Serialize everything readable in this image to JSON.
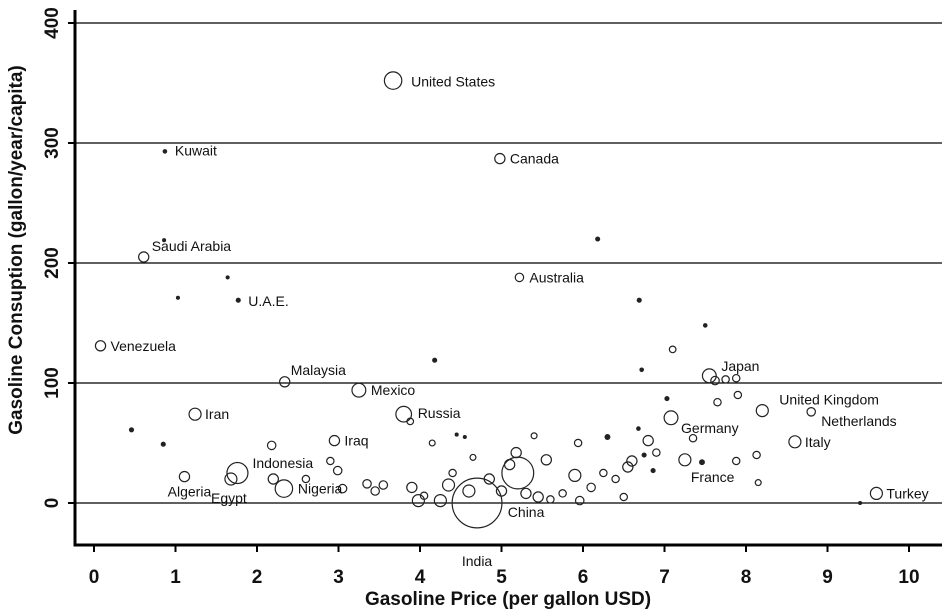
{
  "chart_data": {
    "type": "scatter",
    "title": "",
    "xlabel": "Gasoline Price (per gallon USD)",
    "ylabel": "Gasoline Consuption (gallon/year/capita)",
    "xlim": [
      -0.2,
      10.4
    ],
    "ylim": [
      -35,
      415
    ],
    "xticks": [
      0,
      1,
      2,
      3,
      4,
      5,
      6,
      7,
      8,
      9,
      10
    ],
    "yticks": [
      0,
      100,
      200,
      300,
      400
    ],
    "grid": "horizontal lines at y ticks",
    "colors": {
      "marker": "#222222",
      "text": "#111111",
      "grid": "#000000"
    },
    "points": [
      {
        "label": "United States",
        "x": 3.67,
        "y": 352,
        "size": 4,
        "filled": false
      },
      {
        "label": "Canada",
        "x": 4.98,
        "y": 287,
        "size": 2,
        "filled": false
      },
      {
        "label": "Kuwait",
        "x": 0.87,
        "y": 293,
        "size": 1,
        "filled": true
      },
      {
        "label": "Saudi Arabia",
        "x": 0.61,
        "y": 205,
        "size": 2,
        "filled": false
      },
      {
        "label": "Australia",
        "x": 5.22,
        "y": 188,
        "size": 1.5,
        "filled": false
      },
      {
        "label": "U.A.E.",
        "x": 1.77,
        "y": 169,
        "size": 1.2,
        "filled": true
      },
      {
        "label": "Venezuela",
        "x": 0.08,
        "y": 131,
        "size": 2,
        "filled": false
      },
      {
        "label": "Malaysia",
        "x": 2.34,
        "y": 101,
        "size": 2,
        "filled": false
      },
      {
        "label": "Japan",
        "x": 7.55,
        "y": 106,
        "size": 3,
        "filled": false
      },
      {
        "label": "Mexico",
        "x": 3.25,
        "y": 94,
        "size": 3,
        "filled": false
      },
      {
        "label": "Iran",
        "x": 1.24,
        "y": 74,
        "size": 2.5,
        "filled": false
      },
      {
        "label": "Russia",
        "x": 3.8,
        "y": 74,
        "size": 3.5,
        "filled": false
      },
      {
        "label": "United Kingdom",
        "x": 8.2,
        "y": 77,
        "size": 2.5,
        "filled": false
      },
      {
        "label": "Netherlands",
        "x": 8.8,
        "y": 76,
        "size": 1.5,
        "filled": false
      },
      {
        "label": "Germany",
        "x": 7.08,
        "y": 71,
        "size": 3,
        "filled": false
      },
      {
        "label": "Iraq",
        "x": 2.95,
        "y": 52,
        "size": 2,
        "filled": false
      },
      {
        "label": "Italy",
        "x": 8.6,
        "y": 51,
        "size": 2.5,
        "filled": false
      },
      {
        "label": "Indonesia",
        "x": 1.76,
        "y": 25,
        "size": 5,
        "filled": false
      },
      {
        "label": "France",
        "x": 7.25,
        "y": 36,
        "size": 2.5,
        "filled": false
      },
      {
        "label": "Algeria",
        "x": 1.11,
        "y": 22,
        "size": 2,
        "filled": false
      },
      {
        "label": "Egypt",
        "x": 1.68,
        "y": 20,
        "size": 2.5,
        "filled": false
      },
      {
        "label": "Nigeria",
        "x": 2.33,
        "y": 12,
        "size": 4,
        "filled": false
      },
      {
        "label": "Turkey",
        "x": 9.6,
        "y": 8,
        "size": 2.5,
        "filled": false
      },
      {
        "label": "China",
        "x": 5.2,
        "y": 25,
        "size": 8,
        "filled": false
      },
      {
        "label": "India",
        "x": 4.7,
        "y": 0,
        "size": 13,
        "filled": false
      },
      {
        "label": "",
        "x": 1.03,
        "y": 171,
        "size": 0.8,
        "filled": true
      },
      {
        "label": "",
        "x": 1.64,
        "y": 188,
        "size": 0.8,
        "filled": true
      },
      {
        "label": "",
        "x": 0.86,
        "y": 219,
        "size": 0.8,
        "filled": true
      },
      {
        "label": "",
        "x": 0.46,
        "y": 61,
        "size": 1.2,
        "filled": true
      },
      {
        "label": "",
        "x": 0.85,
        "y": 49,
        "size": 1.2,
        "filled": true
      },
      {
        "label": "",
        "x": 4.18,
        "y": 119,
        "size": 1.2,
        "filled": true
      },
      {
        "label": "",
        "x": 6.18,
        "y": 220,
        "size": 1.2,
        "filled": true
      },
      {
        "label": "",
        "x": 6.69,
        "y": 169,
        "size": 1.2,
        "filled": true
      },
      {
        "label": "",
        "x": 7.5,
        "y": 148,
        "size": 1,
        "filled": true
      },
      {
        "label": "",
        "x": 6.72,
        "y": 111,
        "size": 1,
        "filled": true
      },
      {
        "label": "",
        "x": 7.1,
        "y": 128,
        "size": 1,
        "filled": false
      },
      {
        "label": "",
        "x": 7.03,
        "y": 87,
        "size": 1.2,
        "filled": true
      },
      {
        "label": "",
        "x": 6.3,
        "y": 55,
        "size": 1.5,
        "filled": true
      },
      {
        "label": "",
        "x": 6.8,
        "y": 52,
        "size": 2,
        "filled": false
      },
      {
        "label": "",
        "x": 6.75,
        "y": 40,
        "size": 1.2,
        "filled": true
      },
      {
        "label": "",
        "x": 6.86,
        "y": 27,
        "size": 1.2,
        "filled": true
      },
      {
        "label": "",
        "x": 7.46,
        "y": 34,
        "size": 1.5,
        "filled": true
      },
      {
        "label": "",
        "x": 9.4,
        "y": 0,
        "size": 0.8,
        "filled": true
      },
      {
        "label": "",
        "x": 6.68,
        "y": 62,
        "size": 1,
        "filled": true
      },
      {
        "label": "",
        "x": 6.6,
        "y": 35,
        "size": 2,
        "filled": false
      },
      {
        "label": "",
        "x": 6.55,
        "y": 30,
        "size": 2,
        "filled": false
      },
      {
        "label": "",
        "x": 6.1,
        "y": 13,
        "size": 1.5,
        "filled": false
      },
      {
        "label": "",
        "x": 6.4,
        "y": 20,
        "size": 1.2,
        "filled": false
      },
      {
        "label": "",
        "x": 6.5,
        "y": 5,
        "size": 1.2,
        "filled": false
      },
      {
        "label": "",
        "x": 5.9,
        "y": 23,
        "size": 2.5,
        "filled": false
      },
      {
        "label": "",
        "x": 5.94,
        "y": 50,
        "size": 1.2,
        "filled": false
      },
      {
        "label": "",
        "x": 5.96,
        "y": 2,
        "size": 1.5,
        "filled": false
      },
      {
        "label": "",
        "x": 5.75,
        "y": 8,
        "size": 1.2,
        "filled": false
      },
      {
        "label": "",
        "x": 5.55,
        "y": 36,
        "size": 2,
        "filled": false
      },
      {
        "label": "",
        "x": 5.4,
        "y": 56,
        "size": 0.8,
        "filled": false
      },
      {
        "label": "",
        "x": 5.18,
        "y": 42,
        "size": 2,
        "filled": false
      },
      {
        "label": "",
        "x": 5.1,
        "y": 32,
        "size": 2,
        "filled": false
      },
      {
        "label": "",
        "x": 5.3,
        "y": 8,
        "size": 2,
        "filled": false
      },
      {
        "label": "",
        "x": 5.45,
        "y": 5,
        "size": 2,
        "filled": false
      },
      {
        "label": "",
        "x": 5.6,
        "y": 3,
        "size": 1.2,
        "filled": false
      },
      {
        "label": "",
        "x": 5.0,
        "y": 10,
        "size": 2,
        "filled": false
      },
      {
        "label": "",
        "x": 4.85,
        "y": 20,
        "size": 2,
        "filled": false
      },
      {
        "label": "",
        "x": 4.65,
        "y": 38,
        "size": 0.8,
        "filled": false
      },
      {
        "label": "",
        "x": 4.55,
        "y": 55,
        "size": 0.8,
        "filled": true
      },
      {
        "label": "",
        "x": 4.45,
        "y": 57,
        "size": 0.8,
        "filled": true
      },
      {
        "label": "",
        "x": 4.4,
        "y": 25,
        "size": 1.2,
        "filled": false
      },
      {
        "label": "",
        "x": 4.35,
        "y": 15,
        "size": 2.5,
        "filled": false
      },
      {
        "label": "",
        "x": 4.6,
        "y": 10,
        "size": 2.5,
        "filled": false
      },
      {
        "label": "",
        "x": 4.25,
        "y": 2,
        "size": 2.5,
        "filled": false
      },
      {
        "label": "",
        "x": 4.05,
        "y": 6,
        "size": 1.2,
        "filled": false
      },
      {
        "label": "",
        "x": 3.98,
        "y": 2,
        "size": 2.5,
        "filled": false
      },
      {
        "label": "",
        "x": 3.9,
        "y": 13,
        "size": 2,
        "filled": false
      },
      {
        "label": "",
        "x": 3.55,
        "y": 15,
        "size": 1.5,
        "filled": false
      },
      {
        "label": "",
        "x": 3.35,
        "y": 16,
        "size": 1.5,
        "filled": false
      },
      {
        "label": "",
        "x": 3.45,
        "y": 10,
        "size": 1.5,
        "filled": false
      },
      {
        "label": "",
        "x": 3.05,
        "y": 12,
        "size": 1.5,
        "filled": false
      },
      {
        "label": "",
        "x": 2.99,
        "y": 27,
        "size": 1.5,
        "filled": false
      },
      {
        "label": "",
        "x": 2.9,
        "y": 35,
        "size": 1.2,
        "filled": false
      },
      {
        "label": "",
        "x": 2.6,
        "y": 20,
        "size": 1.2,
        "filled": false
      },
      {
        "label": "",
        "x": 2.2,
        "y": 20,
        "size": 2,
        "filled": false
      },
      {
        "label": "",
        "x": 2.18,
        "y": 48,
        "size": 1.5,
        "filled": false
      },
      {
        "label": "",
        "x": 3.88,
        "y": 68,
        "size": 1,
        "filled": false
      },
      {
        "label": "",
        "x": 4.15,
        "y": 50,
        "size": 0.8,
        "filled": false
      },
      {
        "label": "",
        "x": 7.35,
        "y": 54,
        "size": 1.2,
        "filled": false
      },
      {
        "label": "",
        "x": 7.62,
        "y": 102,
        "size": 1.5,
        "filled": false
      },
      {
        "label": "",
        "x": 7.75,
        "y": 103,
        "size": 1.2,
        "filled": false
      },
      {
        "label": "",
        "x": 7.88,
        "y": 104,
        "size": 1.2,
        "filled": false
      },
      {
        "label": "",
        "x": 7.9,
        "y": 90,
        "size": 1.2,
        "filled": false
      },
      {
        "label": "",
        "x": 7.65,
        "y": 84,
        "size": 1.2,
        "filled": false
      },
      {
        "label": "",
        "x": 7.88,
        "y": 35,
        "size": 1.2,
        "filled": false
      },
      {
        "label": "",
        "x": 8.13,
        "y": 40,
        "size": 1.2,
        "filled": false
      },
      {
        "label": "",
        "x": 8.15,
        "y": 17,
        "size": 0.8,
        "filled": false
      },
      {
        "label": "",
        "x": 6.9,
        "y": 42,
        "size": 1.2,
        "filled": false
      },
      {
        "label": "",
        "x": 6.25,
        "y": 25,
        "size": 1.2,
        "filled": false
      }
    ]
  }
}
